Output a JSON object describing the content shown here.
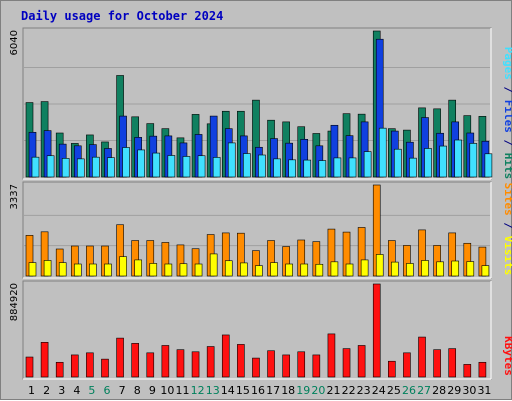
{
  "title": "Daily usage for October 2024",
  "colors": {
    "hits": "#108060",
    "files": "#1040e0",
    "pages": "#40e0ff",
    "visits": "#ffff00",
    "sites": "#ff8c00",
    "kbytes": "#ff1010",
    "weekend_label": "#00805c",
    "weekday_label": "#000080",
    "panel_bg": "#c0c0c0",
    "grid": "#a0a0a0"
  },
  "labels": {
    "pages": "Pages",
    "files": "Files",
    "hits": "Hits",
    "sites": "Sites",
    "visits": "Visits",
    "kbytes": "KBytes",
    "sep": " / "
  },
  "chart_data": {
    "type": "bar",
    "title": "Daily usage for October 2024",
    "days": [
      1,
      2,
      3,
      4,
      5,
      6,
      7,
      8,
      9,
      10,
      11,
      12,
      13,
      14,
      15,
      16,
      17,
      18,
      19,
      20,
      21,
      22,
      23,
      24,
      25,
      26,
      27,
      28,
      29,
      30,
      31
    ],
    "weekend_days": [
      5,
      6,
      12,
      13,
      19,
      20,
      26,
      27
    ],
    "panels": [
      {
        "name": "hits-files-pages",
        "ymax_label": "6040",
        "ymax": 6040,
        "series": [
          {
            "name": "Hits",
            "color": "#108060",
            "values": [
              3080,
              3120,
              1820,
              1390,
              1740,
              1450,
              4200,
              2490,
              2210,
              2000,
              1620,
              2590,
              2200,
              2720,
              2720,
              3180,
              2350,
              2280,
              2080,
              1800,
              1900,
              2620,
              2600,
              6040,
              2000,
              1940,
              2860,
              2820,
              3180,
              2540,
              2510
            ]
          },
          {
            "name": "Files",
            "color": "#1040e0",
            "values": [
              1850,
              1920,
              1360,
              1290,
              1340,
              1180,
              2520,
              1640,
              1690,
              1700,
              1410,
              1760,
              2520,
              2000,
              1700,
              1230,
              1590,
              1400,
              1560,
              1290,
              2140,
              1710,
              2280,
              5700,
              1900,
              1440,
              2460,
              1810,
              2280,
              1820,
              1480
            ]
          },
          {
            "name": "Pages",
            "color": "#40e0ff",
            "values": [
              820,
              880,
              770,
              750,
              820,
              800,
              1220,
              1120,
              990,
              890,
              850,
              880,
              810,
              1410,
              970,
              910,
              750,
              710,
              700,
              680,
              790,
              790,
              1050,
              2020,
              1150,
              780,
              1180,
              1280,
              1530,
              1390,
              960
            ]
          }
        ]
      },
      {
        "name": "visits-sites",
        "ymax_label": "3337",
        "ymax": 3337,
        "series": [
          {
            "name": "Sites",
            "color": "#ff8c00",
            "values": [
              1490,
              1620,
              990,
              1100,
              1100,
              1100,
              1880,
              1300,
              1300,
              1230,
              1140,
              1000,
              1520,
              1580,
              1570,
              930,
              1300,
              1080,
              1320,
              1260,
              1720,
              1610,
              1780,
              3337,
              1300,
              1120,
              1690,
              1120,
              1580,
              1200,
              1060
            ]
          },
          {
            "name": "Visits",
            "color": "#ffff00",
            "values": [
              490,
              570,
              490,
              440,
              440,
              440,
              710,
              590,
              460,
              440,
              450,
              440,
              810,
              560,
              480,
              380,
              490,
              440,
              440,
              430,
              520,
              440,
              590,
              790,
              510,
              460,
              570,
              520,
              550,
              530,
              380
            ]
          }
        ]
      },
      {
        "name": "kbytes",
        "ymax_label": "884920",
        "ymax": 884920,
        "series": [
          {
            "name": "KBytes",
            "color": "#ff1010",
            "values": [
              190000,
              330000,
              140000,
              210000,
              230000,
              170000,
              370000,
              320000,
              230000,
              300000,
              260000,
              240000,
              290000,
              400000,
              310000,
              180000,
              250000,
              210000,
              240000,
              210000,
              410000,
              270000,
              300000,
              884920,
              150000,
              230000,
              380000,
              260000,
              270000,
              120000,
              140000
            ]
          }
        ]
      }
    ]
  }
}
